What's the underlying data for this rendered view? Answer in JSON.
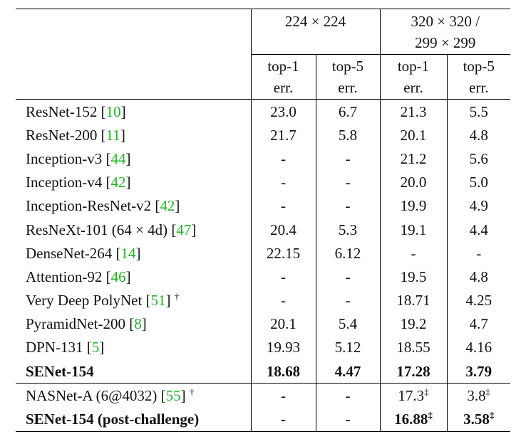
{
  "table": {
    "brackets": [
      "[",
      "]"
    ],
    "header": {
      "groups": [
        [
          "224 × 224"
        ],
        [
          "320 × 320 /",
          "299 × 299"
        ]
      ],
      "columns": [
        [
          "top-1",
          "err."
        ],
        [
          "top-5",
          "err."
        ],
        [
          "top-1",
          "err."
        ],
        [
          "top-5",
          "err."
        ]
      ]
    },
    "sections": [
      [
        {
          "name": "ResNet-152",
          "ref": "10",
          "cells": [
            {
              "text": "23.0"
            },
            {
              "text": "6.7"
            },
            {
              "text": "21.3"
            },
            {
              "text": "5.5"
            }
          ]
        },
        {
          "name": "ResNet-200",
          "ref": "11",
          "cells": [
            {
              "text": "21.7"
            },
            {
              "text": "5.8"
            },
            {
              "text": "20.1"
            },
            {
              "text": "4.8"
            }
          ]
        },
        {
          "name": "Inception-v3",
          "ref": "44",
          "cells": [
            {
              "text": "-"
            },
            {
              "text": "-"
            },
            {
              "text": "21.2"
            },
            {
              "text": "5.6"
            }
          ]
        },
        {
          "name": "Inception-v4",
          "ref": "42",
          "cells": [
            {
              "text": "-"
            },
            {
              "text": "-"
            },
            {
              "text": "20.0"
            },
            {
              "text": "5.0"
            }
          ]
        },
        {
          "name": "Inception-ResNet-v2",
          "ref": "42",
          "cells": [
            {
              "text": "-"
            },
            {
              "text": "-"
            },
            {
              "text": "19.9"
            },
            {
              "text": "4.9"
            }
          ]
        },
        {
          "name": "ResNeXt-101 (64 × 4d)",
          "ref": "47",
          "cells": [
            {
              "text": "20.4"
            },
            {
              "text": "5.3"
            },
            {
              "text": "19.1"
            },
            {
              "text": "4.4"
            }
          ]
        },
        {
          "name": "DenseNet-264",
          "ref": "14",
          "cells": [
            {
              "text": "22.15"
            },
            {
              "text": "6.12"
            },
            {
              "text": "-"
            },
            {
              "text": "-"
            }
          ]
        },
        {
          "name": "Attention-92",
          "ref": "46",
          "cells": [
            {
              "text": "-"
            },
            {
              "text": "-"
            },
            {
              "text": "19.5"
            },
            {
              "text": "4.8"
            }
          ]
        },
        {
          "name": "Very Deep PolyNet",
          "ref": "51",
          "mark": "†",
          "cells": [
            {
              "text": "-"
            },
            {
              "text": "-"
            },
            {
              "text": "18.71"
            },
            {
              "text": "4.25"
            }
          ]
        },
        {
          "name": "PyramidNet-200",
          "ref": "8",
          "cells": [
            {
              "text": "20.1"
            },
            {
              "text": "5.4"
            },
            {
              "text": "19.2"
            },
            {
              "text": "4.7"
            }
          ]
        },
        {
          "name": "DPN-131",
          "ref": "5",
          "cells": [
            {
              "text": "19.93"
            },
            {
              "text": "5.12"
            },
            {
              "text": "18.55"
            },
            {
              "text": "4.16"
            }
          ]
        },
        {
          "name": "SENet-154",
          "bold": true,
          "cells": [
            {
              "text": "18.68"
            },
            {
              "text": "4.47"
            },
            {
              "text": "17.28"
            },
            {
              "text": "3.79"
            }
          ]
        }
      ],
      [
        {
          "name": "NASNet-A (6@4032)",
          "ref": "55",
          "mark": "†",
          "cells": [
            {
              "text": "-"
            },
            {
              "text": "-"
            },
            {
              "text": "17.3",
              "sup": "‡"
            },
            {
              "text": "3.8",
              "sup": "‡"
            }
          ]
        },
        {
          "name": "SENet-154 (post-challenge)",
          "bold": true,
          "cells": [
            {
              "text": "-"
            },
            {
              "text": "-"
            },
            {
              "text": "16.88",
              "sup": "‡"
            },
            {
              "text": "3.58",
              "sup": "‡"
            }
          ]
        }
      ]
    ]
  }
}
